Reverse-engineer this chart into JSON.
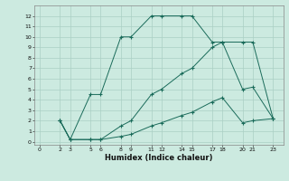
{
  "xlabel": "Humidex (Indice chaleur)",
  "background_color": "#cceae0",
  "grid_color": "#aacfc4",
  "line_color": "#1a6b5a",
  "xlim": [
    -0.5,
    24
  ],
  "ylim": [
    -0.3,
    13
  ],
  "xticks": [
    0,
    2,
    3,
    5,
    6,
    8,
    9,
    11,
    12,
    14,
    15,
    17,
    18,
    20,
    21,
    23
  ],
  "yticks": [
    0,
    1,
    2,
    3,
    4,
    5,
    6,
    7,
    8,
    9,
    10,
    11,
    12
  ],
  "lines": [
    {
      "x": [
        2,
        3,
        5,
        6,
        8,
        9,
        11,
        12,
        14,
        15,
        17,
        18,
        20,
        21,
        23
      ],
      "y": [
        2,
        0.2,
        4.5,
        4.5,
        10,
        10,
        12,
        12,
        12,
        12,
        9.5,
        9.5,
        9.5,
        9.5,
        2.2
      ]
    },
    {
      "x": [
        2,
        3,
        5,
        6,
        8,
        9,
        11,
        12,
        14,
        15,
        17,
        18,
        20,
        21,
        23
      ],
      "y": [
        2,
        0.2,
        0.2,
        0.2,
        1.5,
        2.0,
        4.5,
        5.0,
        6.5,
        7.0,
        9.0,
        9.5,
        5.0,
        5.2,
        2.2
      ]
    },
    {
      "x": [
        2,
        3,
        5,
        6,
        8,
        9,
        11,
        12,
        14,
        15,
        17,
        18,
        20,
        21,
        23
      ],
      "y": [
        2,
        0.2,
        0.2,
        0.2,
        0.5,
        0.7,
        1.5,
        1.8,
        2.5,
        2.8,
        3.8,
        4.2,
        1.8,
        2.0,
        2.2
      ]
    }
  ]
}
